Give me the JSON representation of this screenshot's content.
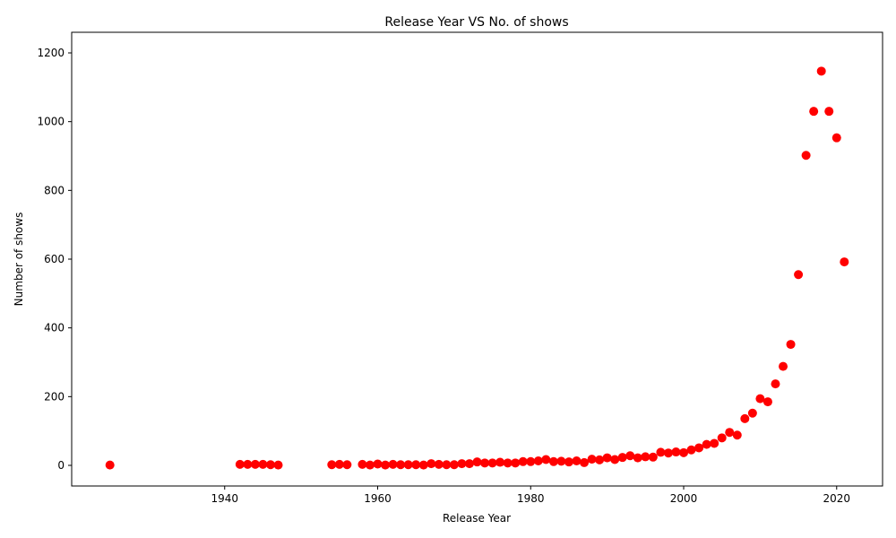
{
  "chart_data": {
    "type": "scatter",
    "title": "Release Year VS No. of shows",
    "xlabel": "Release Year",
    "ylabel": "Number of shows",
    "xlim": [
      1920,
      2026
    ],
    "ylim": [
      -60,
      1260
    ],
    "xticks": [
      1940,
      1960,
      1980,
      2000,
      2020
    ],
    "yticks": [
      0,
      200,
      400,
      600,
      800,
      1000,
      1200
    ],
    "grid": false,
    "marker_color": "#ff0000",
    "series": [
      {
        "points": [
          [
            1925,
            1
          ],
          [
            1942,
            3
          ],
          [
            1943,
            3
          ],
          [
            1944,
            3
          ],
          [
            1945,
            3
          ],
          [
            1946,
            2
          ],
          [
            1947,
            1
          ],
          [
            1954,
            2
          ],
          [
            1955,
            3
          ],
          [
            1956,
            2
          ],
          [
            1958,
            3
          ],
          [
            1959,
            1
          ],
          [
            1960,
            4
          ],
          [
            1961,
            1
          ],
          [
            1962,
            3
          ],
          [
            1963,
            2
          ],
          [
            1964,
            2
          ],
          [
            1965,
            2
          ],
          [
            1966,
            1
          ],
          [
            1967,
            5
          ],
          [
            1968,
            3
          ],
          [
            1969,
            2
          ],
          [
            1970,
            2
          ],
          [
            1971,
            5
          ],
          [
            1972,
            5
          ],
          [
            1973,
            10
          ],
          [
            1974,
            7
          ],
          [
            1975,
            7
          ],
          [
            1976,
            9
          ],
          [
            1977,
            7
          ],
          [
            1978,
            7
          ],
          [
            1979,
            11
          ],
          [
            1980,
            11
          ],
          [
            1981,
            13
          ],
          [
            1982,
            17
          ],
          [
            1983,
            11
          ],
          [
            1984,
            12
          ],
          [
            1985,
            10
          ],
          [
            1986,
            13
          ],
          [
            1987,
            8
          ],
          [
            1988,
            18
          ],
          [
            1989,
            16
          ],
          [
            1990,
            22
          ],
          [
            1991,
            17
          ],
          [
            1992,
            23
          ],
          [
            1993,
            28
          ],
          [
            1994,
            22
          ],
          [
            1995,
            25
          ],
          [
            1996,
            24
          ],
          [
            1997,
            38
          ],
          [
            1998,
            36
          ],
          [
            1999,
            39
          ],
          [
            2000,
            37
          ],
          [
            2001,
            45
          ],
          [
            2002,
            51
          ],
          [
            2003,
            61
          ],
          [
            2004,
            64
          ],
          [
            2005,
            80
          ],
          [
            2006,
            96
          ],
          [
            2007,
            88
          ],
          [
            2008,
            136
          ],
          [
            2009,
            152
          ],
          [
            2010,
            194
          ],
          [
            2011,
            185
          ],
          [
            2012,
            237
          ],
          [
            2013,
            288
          ],
          [
            2014,
            352
          ],
          [
            2015,
            555
          ],
          [
            2016,
            902
          ],
          [
            2017,
            1030
          ],
          [
            2018,
            1147
          ],
          [
            2019,
            1030
          ],
          [
            2020,
            953
          ],
          [
            2021,
            592
          ]
        ]
      }
    ]
  }
}
